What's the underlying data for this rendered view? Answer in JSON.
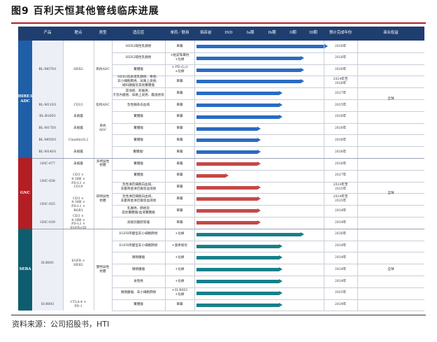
{
  "figure": {
    "title": "图9 百利天恒其他管线临床进展",
    "source": "资料来源：公司招股书，HTI"
  },
  "colors": {
    "header": "#1f3e70",
    "her3": "#1f5fa8",
    "gnc": "#b21e24",
    "seba": "#0d5d6e",
    "bar_blue": "#2a6bc4",
    "bar_red": "#c64848",
    "bar_teal": "#16808a"
  },
  "headers": [
    "产品",
    "靶点",
    "类型",
    "适应症",
    "单药／联用",
    "临床前",
    "IND",
    "Ia期",
    "Ib期",
    "II期",
    "III期",
    "预计完成年份",
    "商业权益"
  ],
  "phase_columns": [
    "临床前",
    "IND",
    "Ia期",
    "Ib期",
    "II期",
    "III期"
  ],
  "companies": [
    {
      "name": "HIRE3\nADC",
      "color": "her3"
    },
    {
      "name": "GNC",
      "color": "gnc"
    },
    {
      "name": "SEBA",
      "color": "seba"
    }
  ],
  "codes": [
    "BL-M07D1",
    "BL-M11D1",
    "BL-B16D1",
    "BL-M17D1",
    "BL-M05D1",
    "BL-M14D1",
    "GNC-077",
    "GNC-038",
    "GNC-035",
    "GNC-039",
    "SI-B001",
    "SI-B003"
  ],
  "targets": [
    "HER2",
    "CD33",
    "未披露",
    "未披露",
    "Claudin18.2",
    "未披露",
    "未披露",
    "CD3 ×\n4-1BB ×\nPD-L1 ×\nCD19",
    "CD3 ×\n4-1BB ×\nPD-L1 ×\nROR1",
    "CD3 ×\n4-1BB ×\nPD-L1 ×\nEGFR×III",
    "EGFR ×\nHER3",
    "CTLA-4 ×\nPD-1"
  ],
  "types": [
    "单抗ADC",
    "双抗ADC",
    "单抗\nADC",
    "多特异性\n抗體",
    "四特异性\n抗體",
    "雙特异性\n抗體"
  ],
  "rights": [
    "全球",
    "全球",
    "全球"
  ],
  "rows": [
    {
      "ind": "HER2陽性乳腺癌",
      "mono": "單藥",
      "phase": 6.2,
      "year": "2026年"
    },
    {
      "ind": "HER2陽性乳腺癌",
      "mono": "+帕妥珠單抗\n+化療",
      "phase": 5.1,
      "year": "2026年"
    },
    {
      "ind": "實體瘤",
      "mono": "+ PD-(L)1\n±化療",
      "phase": 5.1,
      "year": "2026年"
    },
    {
      "ind": "HER2低表達乳腺癌、胃癌、\n非小細胞肺癌、尿路上皮癌、\n婦科腫瘤及其他實體瘤",
      "mono": "單藥",
      "phase": 5.1,
      "year": "2024年至\n2026年"
    },
    {
      "ind": "其他癌、卵巢癌、\n子宮內膜癌、尿路上皮癌、膽道癌等",
      "mono": "單藥",
      "phase": 4.1,
      "year": "2027年"
    },
    {
      "ind": "急性髓系白血病",
      "mono": "單藥",
      "phase": 4.1,
      "year": "2025年"
    },
    {
      "ind": "實體瘤",
      "mono": "單藥",
      "phase": 4.1,
      "year": "2026年"
    },
    {
      "ind": "實體瘤",
      "mono": "單藥",
      "phase": 3.1,
      "year": "2026年"
    },
    {
      "ind": "實體瘤",
      "mono": "單藥",
      "phase": 3.1,
      "year": "2026年"
    },
    {
      "ind": "實體瘤¹",
      "mono": "單藥",
      "phase": 3.1,
      "year": "2026年"
    },
    {
      "ind": "實體瘤",
      "mono": "單藥",
      "phase": 3.1,
      "year": "2026年"
    },
    {
      "ind": "實體瘤",
      "mono": "單藥",
      "phase": 1.6,
      "year": "2027年"
    },
    {
      "ind": "急性淋巴細胞白血病、\n非霍奇金淋巴瘤等血液癌",
      "mono": "單藥",
      "phase": 3.1,
      "year": "2024年至\n2025年"
    },
    {
      "ind": "急性淋巴細胞白血病、\n非霍奇金淋巴瘤等血液癌",
      "mono": "單藥",
      "phase": 3.1,
      "year": "2024年至\n2025年"
    },
    {
      "ind": "乳腺癌、肺癌及\n其他實體瘤/血液實體瘤",
      "mono": "單藥",
      "phase": 3.1,
      "year": "2024年"
    },
    {
      "ind": "高級別腦膠質瘤",
      "mono": "單藥",
      "phase": 3.1,
      "year": "2024年"
    },
    {
      "ind": "EGFR突變型非小細胞肺癌",
      "mono": "+化療",
      "phase": 5.1,
      "year": "2026年"
    },
    {
      "ind": "EGFR突變型非小細胞肺癌",
      "mono": "+奧希替尼",
      "phase": 4.1,
      "year": "2024年"
    },
    {
      "ind": "頭頸腫瘤",
      "mono": "+化療",
      "phase": 4.1,
      "year": "2024年"
    },
    {
      "ind": "頭頸腫瘤",
      "mono": "+化療",
      "phase": 4.1,
      "year": "2024年"
    },
    {
      "ind": "食管癌",
      "mono": "+化療",
      "phase": 4.1,
      "year": "2024年"
    },
    {
      "ind": "頭頸腫瘤、非小細胞肺癌",
      "mono": "+SI-B003\n+化療",
      "phase": 4.1,
      "year": "2025年"
    },
    {
      "ind": "實體瘤",
      "mono": "單藥",
      "phase": 4.1,
      "year": "2024年"
    }
  ]
}
